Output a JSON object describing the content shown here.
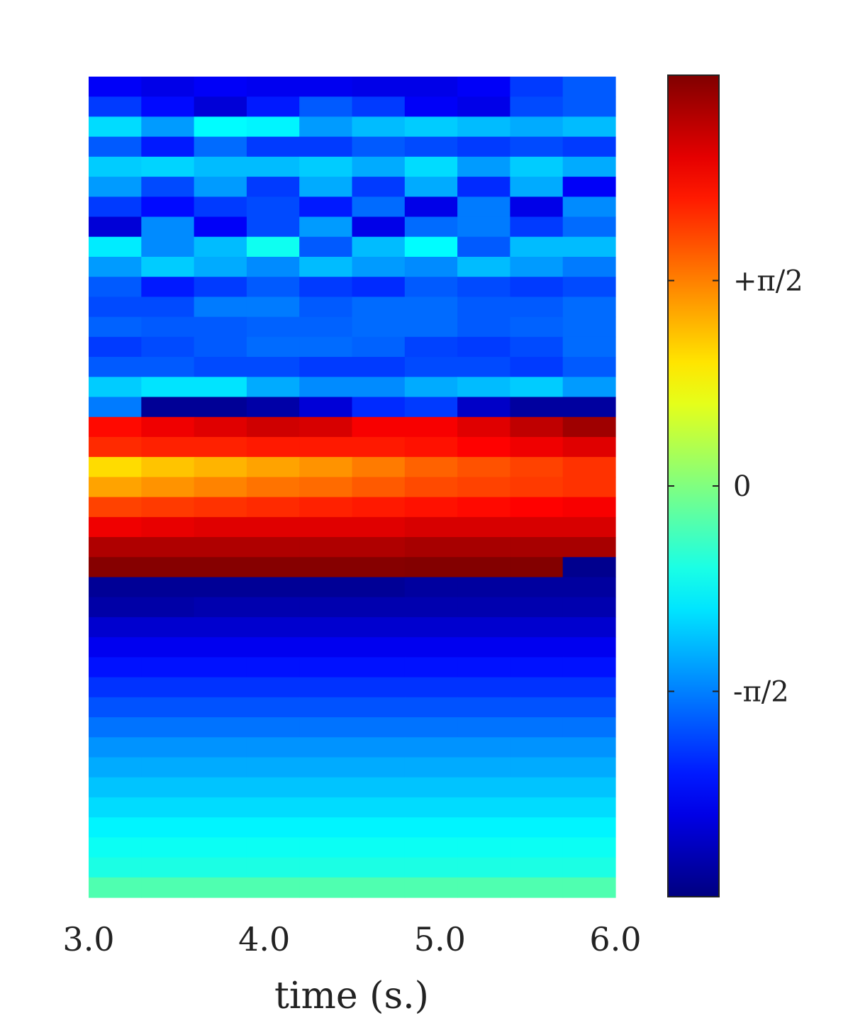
{
  "chart_data": {
    "type": "heatmap",
    "title": "",
    "xlabel": "time (s.)",
    "ylabel": "",
    "xlim": [
      3.0,
      6.0
    ],
    "x_ticks": [
      {
        "value": 3.0,
        "label": "3.0"
      },
      {
        "value": 4.0,
        "label": "4.0"
      },
      {
        "value": 5.0,
        "label": "5.0"
      },
      {
        "value": 6.0,
        "label": "6.0"
      }
    ],
    "colormap": "jet",
    "color_range": [
      -3.14159,
      3.14159
    ],
    "colorbar_ticks": [
      {
        "value": 1.5708,
        "label": "+π/2"
      },
      {
        "value": 0,
        "label": "0"
      },
      {
        "value": -1.5708,
        "label": "-π/2"
      }
    ],
    "columns": 10,
    "rows_top_to_bottom": [
      [
        -2.4,
        -2.5,
        -2.4,
        -2.45,
        -2.45,
        -2.5,
        -2.5,
        -2.4,
        -2.0,
        -1.8
      ],
      [
        -2.0,
        -2.3,
        -2.6,
        -2.2,
        -1.8,
        -2.0,
        -2.4,
        -2.5,
        -1.9,
        -1.8
      ],
      [
        -1.0,
        -1.4,
        -0.8,
        -0.85,
        -1.4,
        -1.2,
        -1.1,
        -1.2,
        -1.3,
        -1.2
      ],
      [
        -1.8,
        -2.2,
        -1.7,
        -2.0,
        -2.0,
        -1.8,
        -1.9,
        -2.0,
        -1.9,
        -2.0
      ],
      [
        -1.1,
        -1.05,
        -1.2,
        -1.2,
        -1.1,
        -1.3,
        -1.0,
        -1.4,
        -1.1,
        -1.3
      ],
      [
        -1.4,
        -1.9,
        -1.4,
        -2.0,
        -1.3,
        -2.0,
        -1.3,
        -2.1,
        -1.3,
        -2.4
      ],
      [
        -2.0,
        -2.3,
        -2.0,
        -1.9,
        -2.2,
        -1.7,
        -2.5,
        -1.6,
        -2.5,
        -1.5
      ],
      [
        -2.6,
        -1.5,
        -2.4,
        -1.9,
        -1.4,
        -2.5,
        -1.7,
        -1.6,
        -2.0,
        -1.7
      ],
      [
        -0.9,
        -1.5,
        -1.2,
        -0.7,
        -1.8,
        -1.2,
        -0.8,
        -1.8,
        -1.2,
        -1.2
      ],
      [
        -1.4,
        -1.1,
        -1.3,
        -1.5,
        -1.2,
        -1.4,
        -1.5,
        -1.2,
        -1.4,
        -1.6
      ],
      [
        -1.8,
        -2.2,
        -2.0,
        -1.8,
        -2.0,
        -2.1,
        -1.8,
        -1.9,
        -2.0,
        -1.9
      ],
      [
        -1.9,
        -1.9,
        -1.6,
        -1.6,
        -1.8,
        -1.7,
        -1.7,
        -1.8,
        -1.8,
        -1.7
      ],
      [
        -1.75,
        -1.8,
        -1.8,
        -1.75,
        -1.75,
        -1.7,
        -1.7,
        -1.8,
        -1.75,
        -1.7
      ],
      [
        -2.0,
        -1.9,
        -1.8,
        -1.7,
        -1.7,
        -1.75,
        -1.95,
        -2.0,
        -1.9,
        -1.7
      ],
      [
        -1.8,
        -1.8,
        -1.9,
        -1.9,
        -2.0,
        -2.0,
        -1.9,
        -1.9,
        -2.0,
        -1.8
      ],
      [
        -1.1,
        -0.95,
        -0.95,
        -1.3,
        -1.5,
        -1.5,
        -1.3,
        -1.2,
        -1.1,
        -1.4
      ],
      [
        -1.6,
        -3.0,
        -3.0,
        -2.9,
        -2.6,
        -2.1,
        -2.0,
        -2.7,
        -2.95,
        -2.95
      ],
      [
        2.3,
        2.45,
        2.55,
        2.65,
        2.6,
        2.4,
        2.4,
        2.55,
        2.75,
        2.95
      ],
      [
        2.1,
        2.15,
        2.15,
        2.2,
        2.2,
        2.2,
        2.25,
        2.35,
        2.45,
        2.55
      ],
      [
        1.0,
        1.15,
        1.25,
        1.35,
        1.45,
        1.6,
        1.75,
        1.85,
        1.95,
        2.05
      ],
      [
        1.35,
        1.45,
        1.55,
        1.65,
        1.7,
        1.8,
        1.9,
        1.95,
        2.0,
        2.05
      ],
      [
        1.95,
        2.0,
        2.05,
        2.1,
        2.15,
        2.2,
        2.25,
        2.3,
        2.35,
        2.4
      ],
      [
        2.45,
        2.5,
        2.55,
        2.55,
        2.55,
        2.55,
        2.6,
        2.6,
        2.6,
        2.6
      ],
      [
        2.85,
        2.85,
        2.85,
        2.85,
        2.85,
        2.85,
        2.9,
        2.9,
        2.9,
        2.9
      ],
      [
        3.1,
        3.1,
        3.1,
        3.1,
        3.1,
        3.1,
        3.12,
        3.12,
        3.12,
        -3.05
      ],
      [
        -3.0,
        -3.0,
        -3.0,
        -3.0,
        -3.0,
        -3.0,
        -2.95,
        -2.95,
        -2.95,
        -2.95
      ],
      [
        -2.9,
        -2.9,
        -2.85,
        -2.85,
        -2.85,
        -2.85,
        -2.85,
        -2.85,
        -2.85,
        -2.85
      ],
      [
        -2.65,
        -2.65,
        -2.65,
        -2.65,
        -2.65,
        -2.65,
        -2.65,
        -2.65,
        -2.65,
        -2.65
      ],
      [
        -2.45,
        -2.45,
        -2.45,
        -2.45,
        -2.45,
        -2.45,
        -2.45,
        -2.45,
        -2.45,
        -2.45
      ],
      [
        -2.25,
        -2.25,
        -2.25,
        -2.25,
        -2.25,
        -2.25,
        -2.25,
        -2.25,
        -2.25,
        -2.25
      ],
      [
        -2.05,
        -2.05,
        -2.05,
        -2.05,
        -2.05,
        -2.05,
        -2.05,
        -2.05,
        -2.05,
        -2.05
      ],
      [
        -1.85,
        -1.85,
        -1.85,
        -1.85,
        -1.85,
        -1.85,
        -1.85,
        -1.85,
        -1.85,
        -1.85
      ],
      [
        -1.65,
        -1.65,
        -1.65,
        -1.65,
        -1.65,
        -1.65,
        -1.65,
        -1.65,
        -1.65,
        -1.65
      ],
      [
        -1.45,
        -1.45,
        -1.45,
        -1.45,
        -1.45,
        -1.45,
        -1.45,
        -1.45,
        -1.45,
        -1.45
      ],
      [
        -1.3,
        -1.3,
        -1.3,
        -1.3,
        -1.3,
        -1.3,
        -1.3,
        -1.3,
        -1.3,
        -1.3
      ],
      [
        -1.15,
        -1.15,
        -1.15,
        -1.15,
        -1.15,
        -1.15,
        -1.15,
        -1.15,
        -1.15,
        -1.15
      ],
      [
        -1.0,
        -1.0,
        -1.0,
        -1.0,
        -1.0,
        -1.0,
        -1.0,
        -1.0,
        -1.0,
        -1.0
      ],
      [
        -0.85,
        -0.85,
        -0.85,
        -0.85,
        -0.85,
        -0.85,
        -0.85,
        -0.85,
        -0.85,
        -0.85
      ],
      [
        -0.72,
        -0.72,
        -0.72,
        -0.72,
        -0.72,
        -0.72,
        -0.72,
        -0.72,
        -0.72,
        -0.72
      ],
      [
        -0.62,
        -0.62,
        -0.62,
        -0.62,
        -0.62,
        -0.62,
        -0.62,
        -0.62,
        -0.62,
        -0.62
      ],
      [
        -0.3,
        -0.3,
        -0.3,
        -0.3,
        -0.3,
        -0.3,
        -0.3,
        -0.3,
        -0.3,
        -0.3
      ]
    ]
  }
}
